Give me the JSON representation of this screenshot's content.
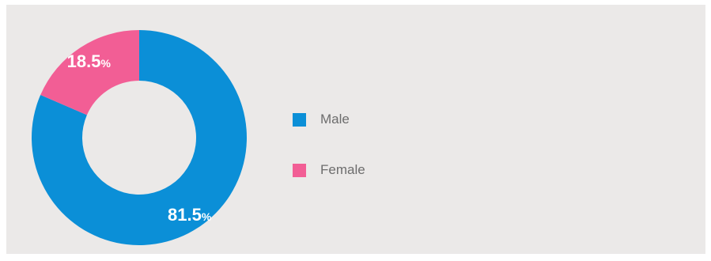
{
  "chart_data": {
    "type": "pie",
    "title": "",
    "categories": [
      "Male",
      "Female"
    ],
    "values": [
      81.5,
      18.5
    ],
    "labels": [
      "81.5",
      "18.5"
    ],
    "unit": "%",
    "colors": [
      "#0b8fd7",
      "#f25e95"
    ],
    "legend_position": "right"
  },
  "legend": {
    "items": [
      {
        "label": "Male",
        "color": "#0b8fd7"
      },
      {
        "label": "Female",
        "color": "#f25e95"
      }
    ]
  }
}
